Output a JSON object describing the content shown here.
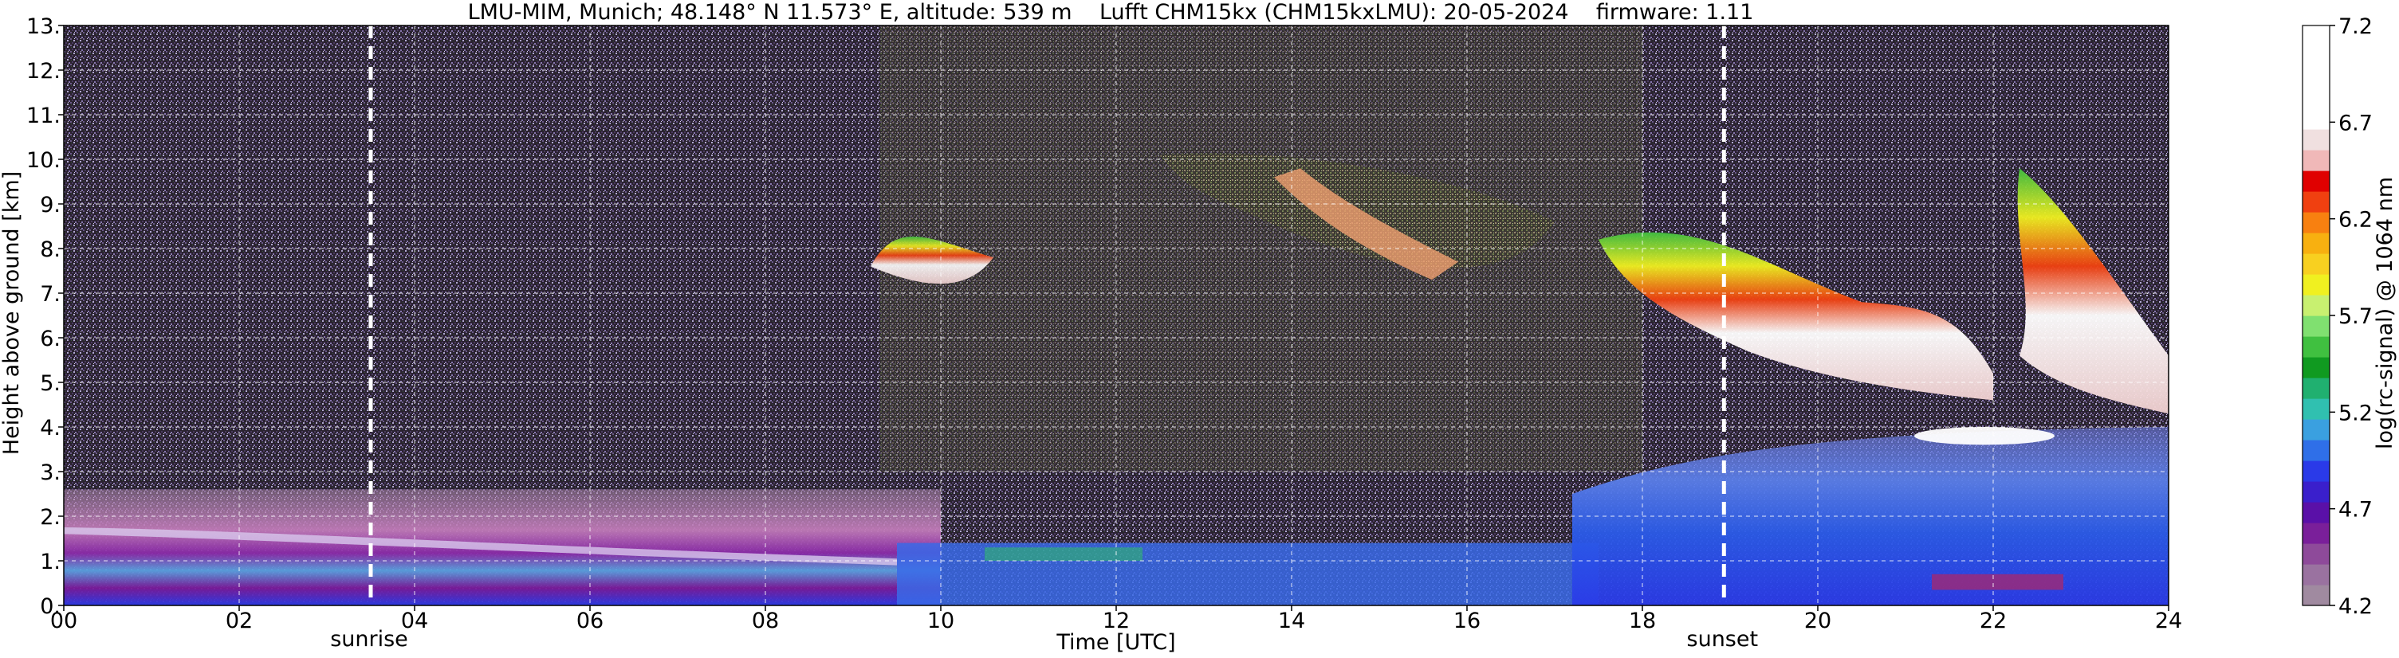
{
  "chart_data": {
    "type": "heatmap",
    "title": "LMU-MIM, Munich; 48.148° N 11.573° E, altitude: 539 m    Lufft CHM15kx (CHM15kxLMU): 20-05-2024    firmware: 1.11",
    "xlabel": "Time [UTC]",
    "ylabel": "Height above ground [km]",
    "xlim": [
      0,
      24
    ],
    "ylim": [
      0,
      13
    ],
    "x_ticks": [
      {
        "value": 0,
        "label": "00"
      },
      {
        "value": 2,
        "label": "02"
      },
      {
        "value": 4,
        "label": "04"
      },
      {
        "value": 6,
        "label": "06"
      },
      {
        "value": 8,
        "label": "08"
      },
      {
        "value": 10,
        "label": "10"
      },
      {
        "value": 12,
        "label": "12"
      },
      {
        "value": 14,
        "label": "14"
      },
      {
        "value": 16,
        "label": "16"
      },
      {
        "value": 18,
        "label": "18"
      },
      {
        "value": 20,
        "label": "20"
      },
      {
        "value": 22,
        "label": "22"
      },
      {
        "value": 24,
        "label": "24"
      }
    ],
    "y_ticks": [
      {
        "value": 0,
        "label": "0."
      },
      {
        "value": 1,
        "label": "1."
      },
      {
        "value": 2,
        "label": "2."
      },
      {
        "value": 3,
        "label": "3."
      },
      {
        "value": 4,
        "label": "4."
      },
      {
        "value": 5,
        "label": "5."
      },
      {
        "value": 6,
        "label": "6."
      },
      {
        "value": 7,
        "label": "7."
      },
      {
        "value": 8,
        "label": "8."
      },
      {
        "value": 9,
        "label": "9."
      },
      {
        "value": 10,
        "label": "10."
      },
      {
        "value": 11,
        "label": "11."
      },
      {
        "value": 12,
        "label": "12."
      },
      {
        "value": 13,
        "label": "13."
      }
    ],
    "grid": true,
    "colorbar": {
      "label": "log(rc-signal) @ 1064 nm",
      "range": [
        4.2,
        7.2
      ],
      "ticks": [
        {
          "value": 4.2,
          "label": "4.2"
        },
        {
          "value": 4.7,
          "label": "4.7"
        },
        {
          "value": 5.2,
          "label": "5.2"
        },
        {
          "value": 5.7,
          "label": "5.7"
        },
        {
          "value": 6.2,
          "label": "6.2"
        },
        {
          "value": 6.7,
          "label": "6.7"
        },
        {
          "value": 7.2,
          "label": "7.2"
        }
      ],
      "colors": [
        "#a08aa0",
        "#9a72a0",
        "#8e4a9a",
        "#7a1f9a",
        "#5a10a8",
        "#3a1fcc",
        "#2a3ae8",
        "#2f6fe8",
        "#3aa0e0",
        "#30c0b0",
        "#20b070",
        "#109a20",
        "#40c040",
        "#80e070",
        "#c8f070",
        "#f0f020",
        "#f8d020",
        "#f8b010",
        "#f88010",
        "#f04010",
        "#e00000",
        "#f0b8b8",
        "#f0e0e0",
        "#ffffff",
        "#ffffff",
        "#ffffff",
        "#ffffff",
        "#ffffff"
      ]
    },
    "markers": [
      {
        "label": "sunrise",
        "x": 3.5
      },
      {
        "label": "sunset",
        "x": 18.93
      }
    ],
    "features": [
      {
        "kind": "boundary_layer",
        "x_range": [
          0,
          24
        ],
        "y_range": [
          0,
          2.5
        ],
        "level": 4.7
      },
      {
        "kind": "boundary_layer_afternoon",
        "x_range": [
          17.3,
          24
        ],
        "y_range": [
          0,
          4
        ],
        "level": 4.8
      },
      {
        "kind": "cirrus",
        "x_range": [
          9.2,
          10.6
        ],
        "y_range": [
          7.0,
          8.6
        ],
        "level": 6.6
      },
      {
        "kind": "cirrus",
        "x_range": [
          12.5,
          16.8
        ],
        "y_range": [
          7.0,
          10.2
        ],
        "level": 6.3
      },
      {
        "kind": "cirrus",
        "x_range": [
          17.0,
          24
        ],
        "y_range": [
          4.3,
          10.0
        ],
        "level": 6.8
      },
      {
        "kind": "low_cloud",
        "x_range": [
          21.0,
          22.8
        ],
        "y_range": [
          3.7,
          4.2
        ],
        "level": 7.0
      }
    ]
  }
}
